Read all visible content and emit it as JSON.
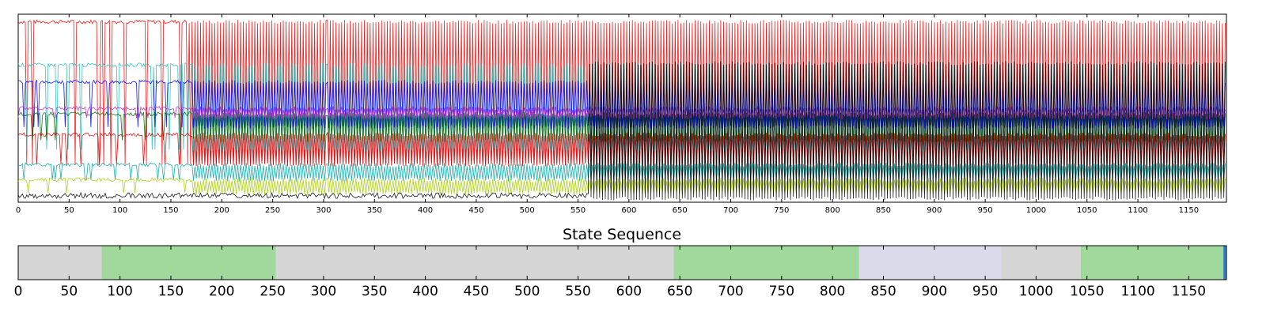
{
  "chart_data": [
    {
      "type": "line",
      "title": "",
      "xlabel": "",
      "ylabel": "",
      "xlim": [
        0,
        1187
      ],
      "ylim": [
        0,
        1
      ],
      "x_ticks": [
        "0",
        "50",
        "100",
        "150",
        "200",
        "250",
        "300",
        "350",
        "400",
        "450",
        "500",
        "550",
        "600",
        "650",
        "700",
        "750",
        "800",
        "850",
        "900",
        "950",
        "1000",
        "1050",
        "1100",
        "1150"
      ],
      "y_ticks": [],
      "grid": false,
      "legend": "none",
      "series_colors": [
        "#ff0000",
        "#1fbfbf",
        "#0000ff",
        "#cc22cc",
        "#006400",
        "#ff0000",
        "#00aaaa",
        "#0000cc",
        "#aacc00",
        "#cc8800",
        "#000000",
        "#c06000"
      ],
      "series_levels": [
        {
          "color": "#ff0000",
          "high": 0.96,
          "low": 0.2
        },
        {
          "color": "#1fbfbf",
          "high": 0.73,
          "low": 0.28
        },
        {
          "color": "#0000ff",
          "high": 0.64,
          "low": 0.4
        },
        {
          "color": "#006400",
          "high": 0.47,
          "low": 0.33
        },
        {
          "color": "#cc22cc",
          "high": 0.5,
          "low": 0.45
        },
        {
          "color": "#e00000",
          "high": 0.36,
          "low": 0.2
        },
        {
          "color": "#00aaaa",
          "high": 0.2,
          "low": 0.12
        },
        {
          "color": "#aacc00",
          "high": 0.12,
          "low": 0.05
        },
        {
          "color": "#000000",
          "high": 0.74,
          "low": 0.02
        }
      ]
    },
    {
      "type": "bar",
      "title": "State Sequence",
      "xlim": [
        0,
        1187
      ],
      "x_ticks": [
        "0",
        "50",
        "100",
        "150",
        "200",
        "250",
        "300",
        "350",
        "400",
        "450",
        "500",
        "550",
        "600",
        "650",
        "700",
        "750",
        "800",
        "850",
        "900",
        "950",
        "1000",
        "1050",
        "1100",
        "1150"
      ],
      "segments": [
        {
          "start": 0,
          "end": 82,
          "color": "#d6d6d6"
        },
        {
          "start": 82,
          "end": 253,
          "color": "#a0d99b"
        },
        {
          "start": 253,
          "end": 644,
          "color": "#d6d6d6"
        },
        {
          "start": 644,
          "end": 826,
          "color": "#a0d99b"
        },
        {
          "start": 826,
          "end": 966,
          "color": "#dadaeb"
        },
        {
          "start": 966,
          "end": 1044,
          "color": "#d6d6d6"
        },
        {
          "start": 1044,
          "end": 1184,
          "color": "#a0d99b"
        },
        {
          "start": 1184,
          "end": 1187,
          "color": "#3182bd"
        }
      ]
    }
  ]
}
